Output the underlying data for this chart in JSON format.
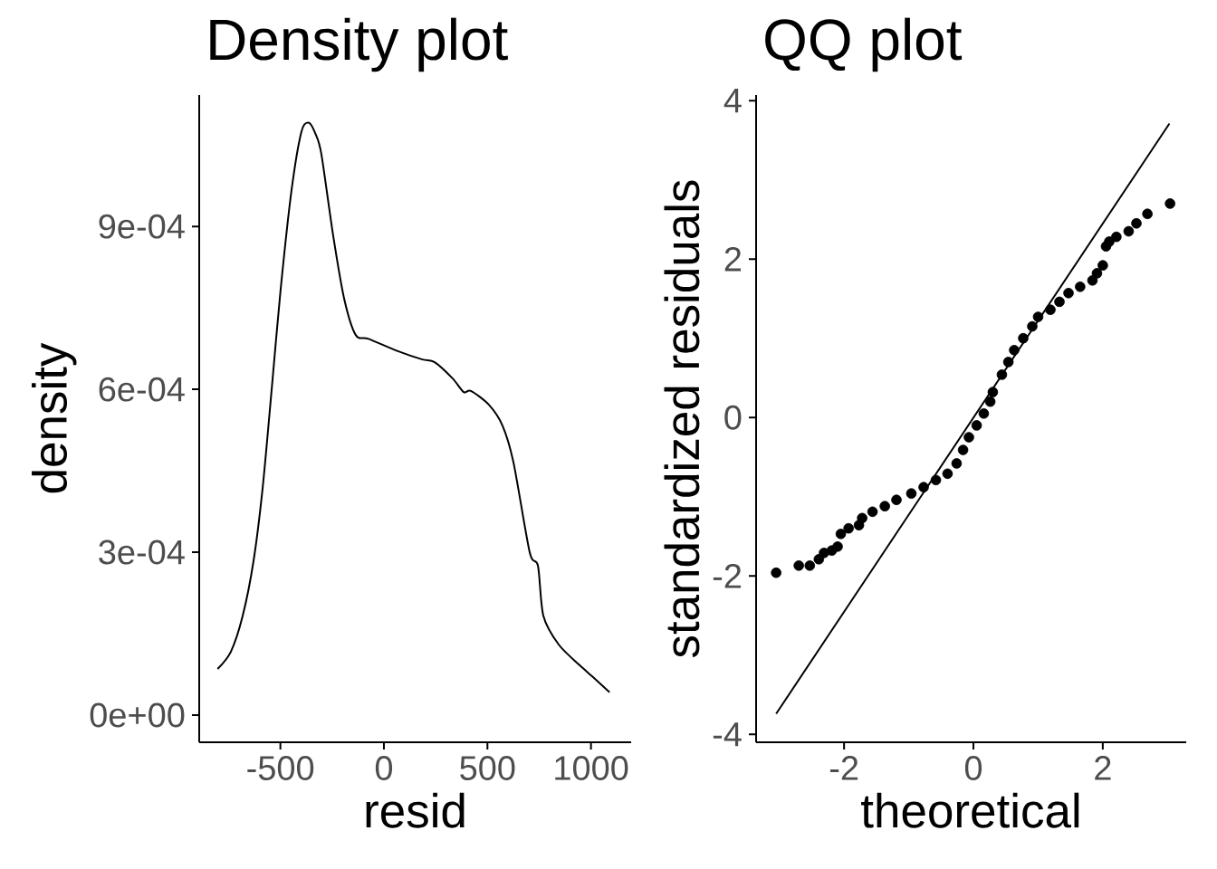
{
  "chart_data": [
    {
      "type": "line",
      "title": "Density plot",
      "xlabel": "resid",
      "ylabel": "density",
      "x": [
        -803,
        -739,
        -682,
        -630,
        -586,
        -542,
        -499,
        -446,
        -398,
        -363,
        -330,
        -302,
        -245,
        -192,
        -136,
        -74,
        70,
        186,
        245,
        332,
        385,
        420,
        506,
        573,
        626,
        704,
        744,
        770,
        844,
        945,
        1010,
        1090
      ],
      "values": [
        8.5e-05,
        0.000117,
        0.000183,
        0.000283,
        0.000417,
        0.0006,
        0.000783,
        0.000967,
        0.001075,
        0.001091,
        0.00107,
        0.001033,
        0.000883,
        0.000767,
        0.0007,
        0.000693,
        0.00067,
        0.000655,
        0.00065,
        0.00062,
        0.000595,
        0.000597,
        0.000572,
        0.000533,
        0.000465,
        0.0003,
        0.000275,
        0.000183,
        0.00013,
        9.2e-05,
        7e-05,
        4.2e-05
      ],
      "color": "#000000",
      "xlim": [
        -892,
        1194
      ],
      "ylim": [
        -5e-05,
        0.001142
      ],
      "xticks": [
        -500,
        0,
        500,
        1000
      ],
      "yticks": [
        {
          "value": 0,
          "label": "0e+00"
        },
        {
          "value": 0.0003,
          "label": "3e-04"
        },
        {
          "value": 0.0006,
          "label": "6e-04"
        },
        {
          "value": 0.0009,
          "label": "9e-04"
        }
      ],
      "grid": false
    },
    {
      "type": "scatter",
      "title": "QQ plot",
      "xlabel": "theoretical",
      "ylabel": "standardized residuals",
      "series": [
        {
          "type": "scatter",
          "color": "#000000",
          "marker": "circle",
          "x": [
            -3.05,
            -2.7,
            -2.53,
            -2.39,
            -2.31,
            -2.19,
            -2.1,
            -2.05,
            -1.93,
            -1.77,
            -1.72,
            -1.56,
            -1.37,
            -1.19,
            -0.96,
            -0.77,
            -0.58,
            -0.4,
            -0.26,
            -0.16,
            -0.07,
            0.05,
            0.16,
            0.26,
            0.3,
            0.44,
            0.54,
            0.63,
            0.77,
            0.91,
            1.0,
            1.19,
            1.33,
            1.47,
            1.65,
            1.84,
            1.91,
            2.0,
            2.05,
            2.1,
            2.21,
            2.4,
            2.52,
            2.69,
            3.04
          ],
          "values": [
            -1.96,
            -1.87,
            -1.87,
            -1.79,
            -1.71,
            -1.68,
            -1.63,
            -1.47,
            -1.4,
            -1.36,
            -1.27,
            -1.19,
            -1.12,
            -1.04,
            -0.96,
            -0.88,
            -0.79,
            -0.71,
            -0.58,
            -0.41,
            -0.25,
            -0.1,
            0.05,
            0.2,
            0.32,
            0.54,
            0.7,
            0.85,
            1.0,
            1.15,
            1.27,
            1.36,
            1.46,
            1.57,
            1.65,
            1.73,
            1.82,
            1.92,
            2.16,
            2.22,
            2.28,
            2.35,
            2.45,
            2.57,
            2.7
          ]
        },
        {
          "type": "line",
          "color": "#000000",
          "x": [
            -3.05,
            3.03
          ],
          "values": [
            -3.74,
            3.71
          ]
        }
      ],
      "xlim": [
        -3.36,
        3.29
      ],
      "ylim": [
        -4.1,
        4.07
      ],
      "xticks": [
        -2,
        0,
        2
      ],
      "yticks": [
        -4,
        -2,
        0,
        2,
        4
      ],
      "grid": false
    }
  ]
}
